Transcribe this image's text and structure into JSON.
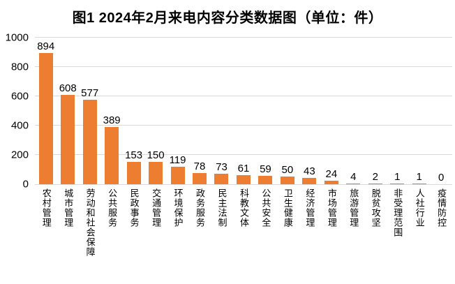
{
  "title": "图1  2024年2月来电内容分类数据图（单位：件）",
  "chart_data": {
    "type": "bar",
    "title": "图1  2024年2月来电内容分类数据图（单位：件）",
    "unit": "件",
    "categories": [
      "农村管理",
      "城市管理",
      "劳动和社会保障",
      "公共服务",
      "民政事务",
      "交通管理",
      "环境保护",
      "政务服务",
      "民主法制",
      "科教文体",
      "公共安全",
      "卫生健康",
      "经济管理",
      "市场管理",
      "旅游管理",
      "脱贫攻坚",
      "非受理范围",
      "人社行业",
      "疫情防控"
    ],
    "values": [
      894,
      608,
      577,
      389,
      153,
      150,
      119,
      78,
      73,
      61,
      59,
      50,
      43,
      24,
      4,
      2,
      1,
      1,
      0
    ],
    "xlabel": "",
    "ylabel": "",
    "y_ticks": [
      0,
      200,
      400,
      600,
      800,
      1000
    ],
    "ylim": [
      0,
      1000
    ],
    "grid": true,
    "legend": false,
    "data_labels": true,
    "bar_color": "#ED7D31",
    "gridline_color": "#D9D9D9",
    "axis_line_color": "#D9D9D9",
    "text_color": "#000000",
    "background_color": "#FFFFFF"
  }
}
